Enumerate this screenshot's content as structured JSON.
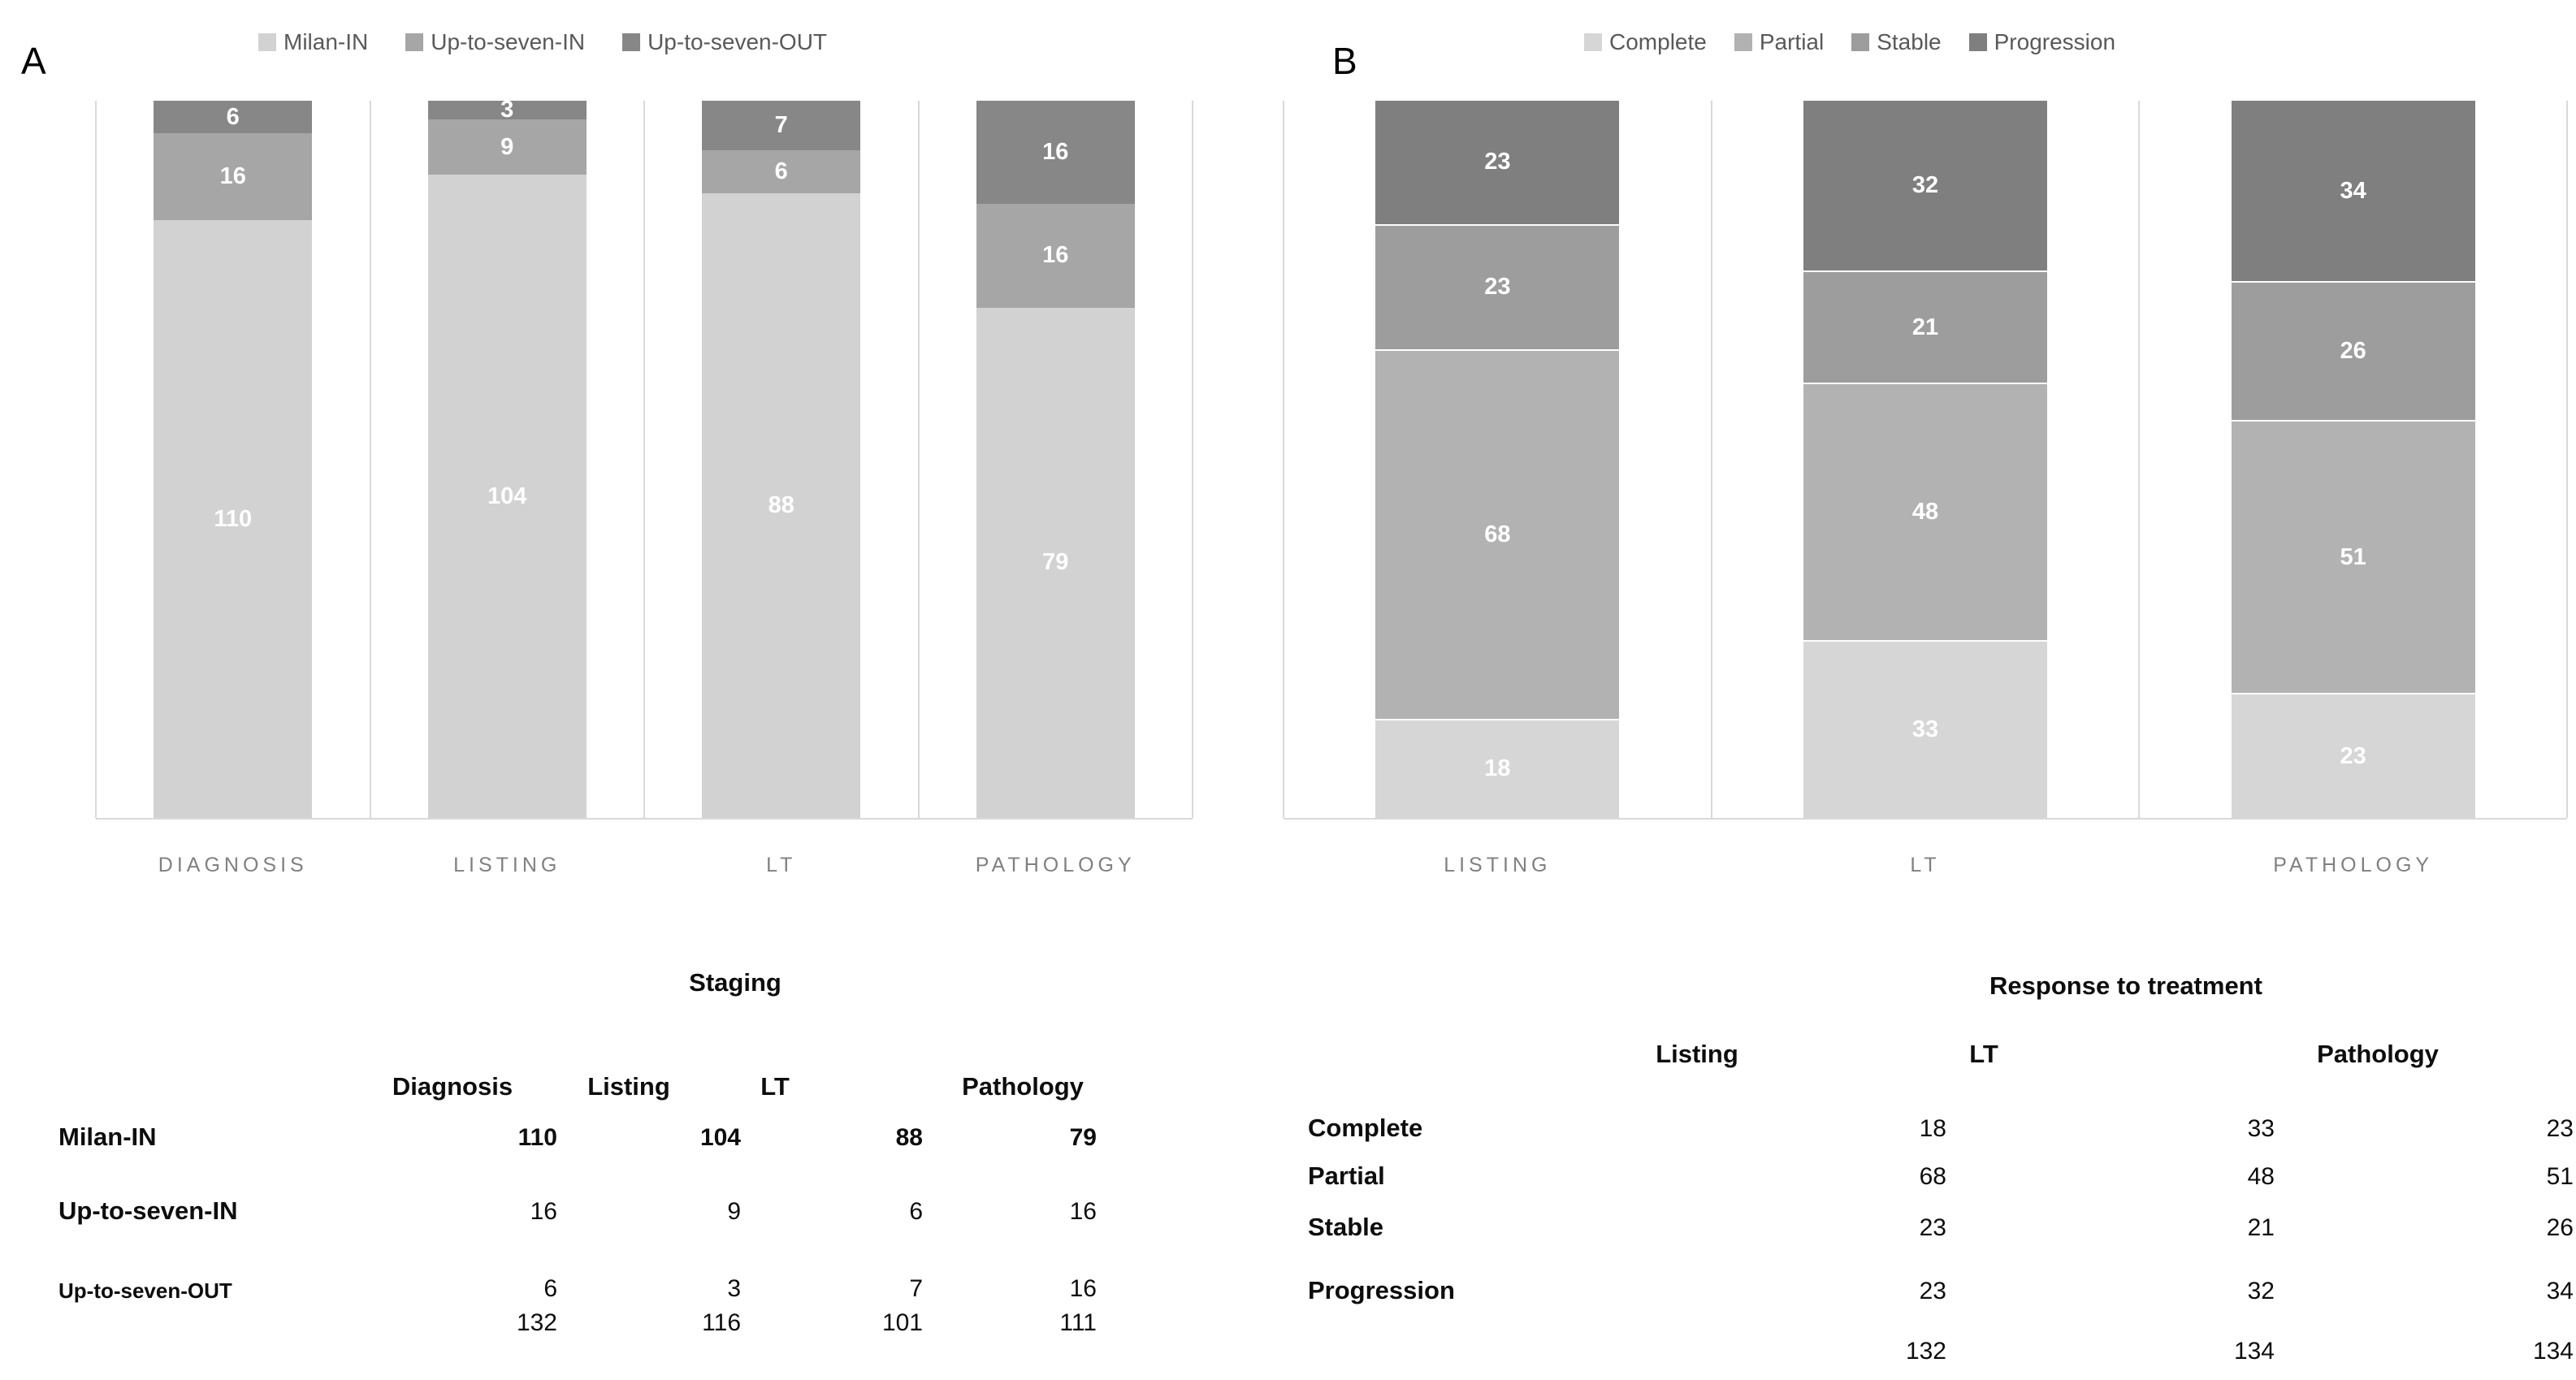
{
  "panels": {
    "a": "A",
    "b": "B"
  },
  "colors": {
    "gridline": "#d9d9d9",
    "category_label": "#808080",
    "legend_text": "#595959",
    "bar_value_label": "#ffffff"
  },
  "chart_data": [
    {
      "type": "bar",
      "subtype": "stacked-column-scaled-to-full-height",
      "panel": "A",
      "title": "Staging",
      "categories": [
        "DIAGNOSIS",
        "LISTING",
        "LT",
        "PATHOLOGY"
      ],
      "series": [
        {
          "name": "Milan-IN",
          "color": "#d2d2d2",
          "values": [
            110,
            104,
            88,
            79
          ]
        },
        {
          "name": "Up-to-seven-IN",
          "color": "#a6a6a6",
          "values": [
            16,
            9,
            6,
            16
          ]
        },
        {
          "name": "Up-to-seven-OUT",
          "color": "#878787",
          "values": [
            6,
            3,
            7,
            16
          ]
        }
      ],
      "totals": [
        132,
        116,
        101,
        111
      ],
      "legend_position": "top",
      "value_labels": "white numbers centered in each segment",
      "grid": "vertical pane separators + bottom axis line, light gray"
    },
    {
      "type": "bar",
      "subtype": "stacked-column-scaled-to-full-height",
      "panel": "B",
      "title": "Response to treatment",
      "categories": [
        "LISTING",
        "LT",
        "PATHOLOGY"
      ],
      "series": [
        {
          "name": "Complete",
          "color": "#d6d6d6",
          "values": [
            18,
            33,
            23
          ]
        },
        {
          "name": "Partial",
          "color": "#b2b2b2",
          "values": [
            68,
            48,
            51
          ]
        },
        {
          "name": "Stable",
          "color": "#9d9d9d",
          "values": [
            23,
            21,
            26
          ]
        },
        {
          "name": "Progression",
          "color": "#7f7f7f",
          "values": [
            23,
            32,
            34
          ]
        }
      ],
      "totals": [
        132,
        134,
        134
      ],
      "legend_position": "top",
      "value_labels": "white numbers centered in each segment",
      "grid": "vertical pane separators + bottom axis line, light gray"
    }
  ],
  "tables": {
    "staging": {
      "title": "Staging",
      "columns": [
        "Diagnosis",
        "Listing",
        "LT",
        "Pathology"
      ],
      "rows": [
        {
          "label": "Milan-IN",
          "values": [
            "110",
            "104",
            "88",
            "79"
          ]
        },
        {
          "label": "Up-to-seven-IN",
          "values": [
            "16",
            "9",
            "6",
            "16"
          ]
        },
        {
          "label": "Up-to-seven-OUT",
          "values": [
            "6",
            "3",
            "7",
            "16"
          ]
        }
      ],
      "totals": [
        "132",
        "116",
        "101",
        "111"
      ]
    },
    "response": {
      "title": "Response to treatment",
      "columns": [
        "Listing",
        "LT",
        "Pathology"
      ],
      "rows": [
        {
          "label": "Complete",
          "values": [
            "18",
            "33",
            "23"
          ]
        },
        {
          "label": "Partial",
          "values": [
            "68",
            "48",
            "51"
          ]
        },
        {
          "label": "Stable",
          "values": [
            "23",
            "21",
            "26"
          ]
        },
        {
          "label": "Progression",
          "values": [
            "23",
            "32",
            "34"
          ]
        }
      ],
      "totals": [
        "132",
        "134",
        "134"
      ]
    }
  }
}
